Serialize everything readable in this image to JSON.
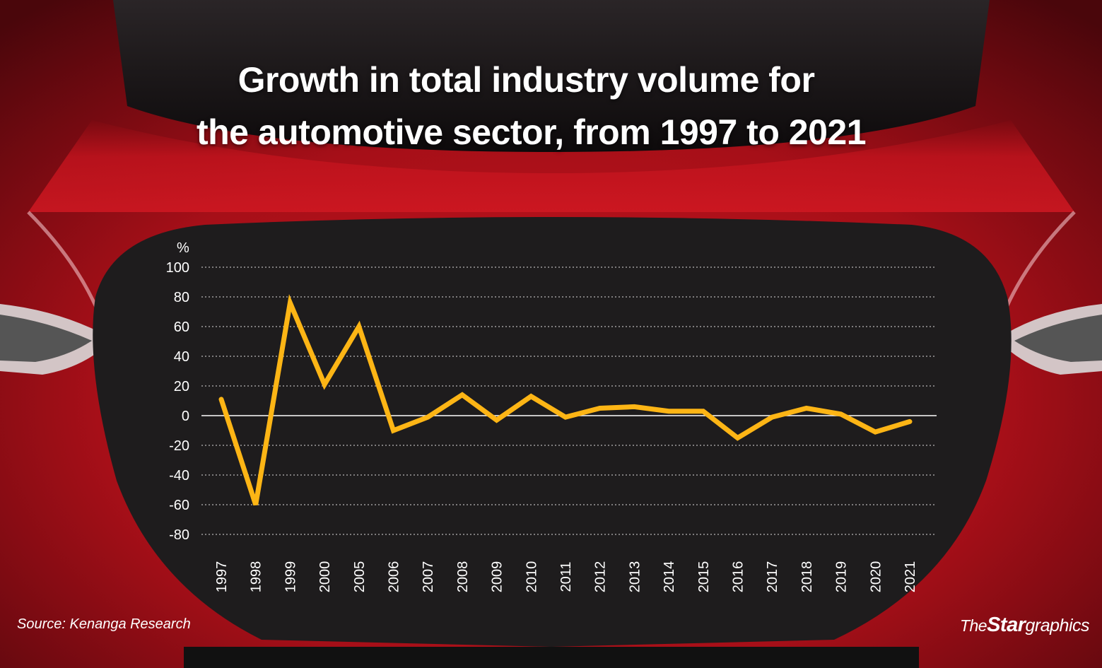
{
  "header": {
    "title_line1": "Growth in total industry volume for",
    "title_line2": "the automotive sector, from 1997 to 2021"
  },
  "footer": {
    "source": "Source: Kenanga Research",
    "brand_the": "The",
    "brand_star": "Star",
    "brand_graphics": "graphics"
  },
  "colors": {
    "line": "#FDB515",
    "panel": "#1e1c1d",
    "car_red": "#b5121b",
    "grid": "#ffffff"
  },
  "chart_data": {
    "type": "line",
    "title": "Growth in total industry volume for the automotive sector, from 1997 to 2021",
    "ylabel": "%",
    "xlabel": "",
    "ylim": [
      -80,
      100
    ],
    "yticks": [
      100,
      80,
      60,
      40,
      20,
      0,
      -20,
      -40,
      -60,
      -80
    ],
    "grid": true,
    "categories": [
      "1997",
      "1998",
      "1999",
      "2000",
      "2005",
      "2006",
      "2007",
      "2008",
      "2009",
      "2010",
      "2011",
      "2012",
      "2013",
      "2014",
      "2015",
      "2016",
      "2017",
      "2018",
      "2019",
      "2020",
      "2021"
    ],
    "series": [
      {
        "values": [
          11,
          -60,
          76,
          21,
          60,
          -10,
          -1,
          14,
          -3,
          13,
          -1,
          5,
          6,
          3,
          3,
          -15,
          -1,
          5,
          1,
          -11,
          -4
        ]
      }
    ]
  }
}
